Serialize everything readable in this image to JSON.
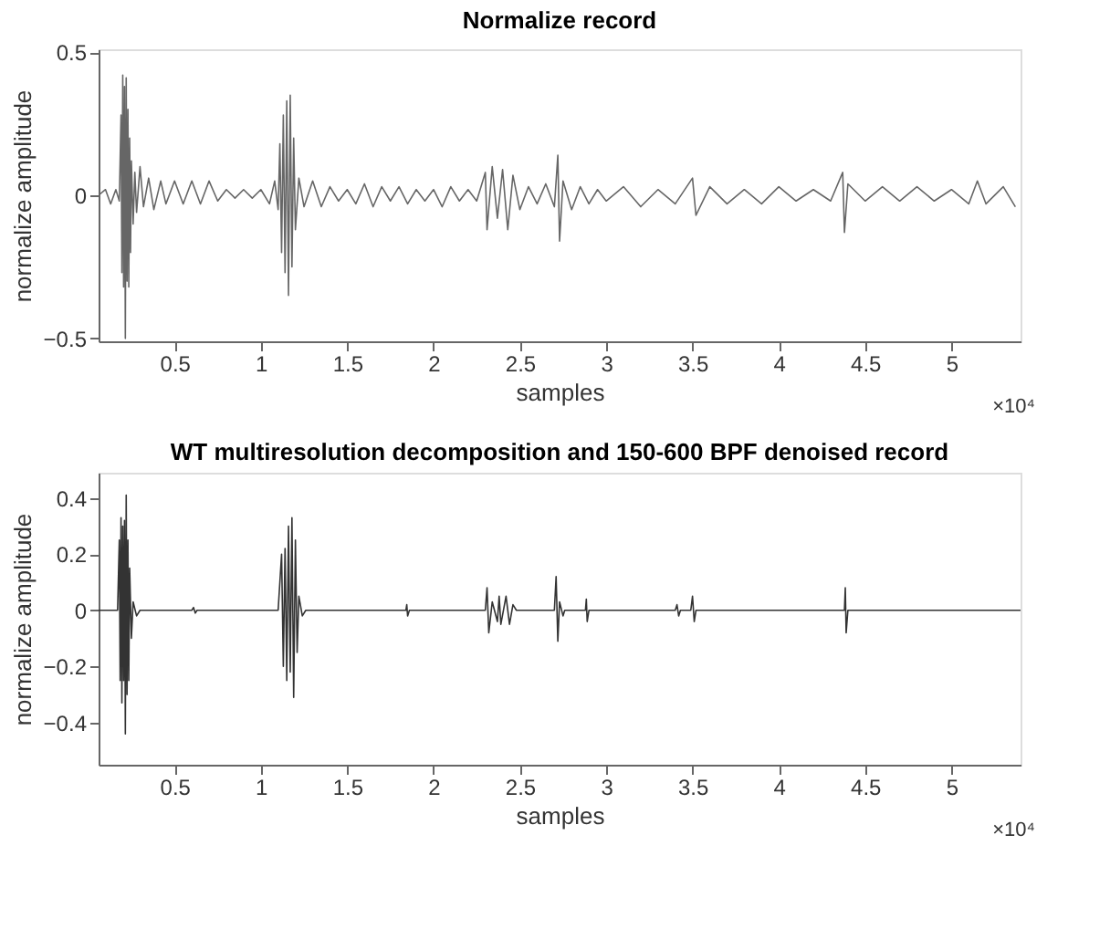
{
  "chart_data": [
    {
      "type": "line",
      "title": "Normalize record",
      "xlabel": "samples",
      "ylabel": "normalize amplitude",
      "xlim": [
        0.06,
        5.4
      ],
      "xticks": [
        0.5,
        1,
        1.5,
        2,
        2.5,
        3,
        3.5,
        4,
        4.5,
        5
      ],
      "ylim": [
        -0.51,
        0.51
      ],
      "yticks": [
        -0.5,
        0,
        0.5
      ],
      "grid": false,
      "annotations": [
        "×10⁴"
      ],
      "series": [
        {
          "color": "#666666",
          "x": [
            0.06,
            0.1,
            0.13,
            0.16,
            0.18,
            0.19,
            0.195,
            0.2,
            0.205,
            0.21,
            0.215,
            0.22,
            0.225,
            0.23,
            0.235,
            0.24,
            0.245,
            0.25,
            0.26,
            0.27,
            0.28,
            0.3,
            0.32,
            0.35,
            0.38,
            0.42,
            0.45,
            0.5,
            0.55,
            0.6,
            0.65,
            0.7,
            0.75,
            0.8,
            0.85,
            0.9,
            0.95,
            1.0,
            1.05,
            1.08,
            1.1,
            1.11,
            1.12,
            1.13,
            1.14,
            1.15,
            1.16,
            1.17,
            1.18,
            1.19,
            1.2,
            1.22,
            1.25,
            1.3,
            1.35,
            1.4,
            1.45,
            1.5,
            1.55,
            1.6,
            1.65,
            1.7,
            1.75,
            1.8,
            1.85,
            1.9,
            1.95,
            2.0,
            2.05,
            2.1,
            2.15,
            2.2,
            2.25,
            2.3,
            2.31,
            2.34,
            2.37,
            2.4,
            2.43,
            2.46,
            2.5,
            2.55,
            2.6,
            2.65,
            2.7,
            2.72,
            2.73,
            2.75,
            2.8,
            2.85,
            2.9,
            2.95,
            3.0,
            3.1,
            3.2,
            3.3,
            3.4,
            3.5,
            3.52,
            3.6,
            3.7,
            3.8,
            3.9,
            4.0,
            4.1,
            4.2,
            4.3,
            4.37,
            4.38,
            4.4,
            4.5,
            4.6,
            4.7,
            4.8,
            4.9,
            5.0,
            5.1,
            5.15,
            5.2,
            5.3,
            5.37
          ],
          "values": [
            0,
            0.02,
            -0.03,
            0.02,
            -0.02,
            0.28,
            -0.27,
            0.42,
            -0.32,
            0.38,
            -0.5,
            0.41,
            -0.3,
            0.3,
            -0.32,
            0.2,
            -0.2,
            0.12,
            -0.1,
            0.08,
            -0.06,
            0.1,
            -0.04,
            0.06,
            -0.05,
            0.05,
            -0.03,
            0.05,
            -0.03,
            0.05,
            -0.03,
            0.05,
            -0.02,
            0.02,
            -0.01,
            0.02,
            -0.01,
            0.02,
            -0.03,
            0.05,
            -0.05,
            0.18,
            -0.2,
            0.28,
            -0.27,
            0.33,
            -0.35,
            0.35,
            -0.25,
            0.2,
            -0.12,
            0.06,
            -0.04,
            0.05,
            -0.04,
            0.03,
            -0.02,
            0.02,
            -0.03,
            0.04,
            -0.04,
            0.03,
            -0.02,
            0.03,
            -0.03,
            0.02,
            -0.02,
            0.02,
            -0.04,
            0.03,
            -0.02,
            0.02,
            -0.02,
            0.08,
            -0.12,
            0.1,
            -0.08,
            0.09,
            -0.12,
            0.07,
            -0.05,
            0.03,
            -0.03,
            0.04,
            -0.04,
            0.14,
            -0.16,
            0.05,
            -0.05,
            0.03,
            -0.03,
            0.02,
            -0.02,
            0.03,
            -0.04,
            0.02,
            -0.03,
            0.06,
            -0.07,
            0.03,
            -0.03,
            0.02,
            -0.03,
            0.03,
            -0.02,
            0.02,
            -0.02,
            0.08,
            -0.13,
            0.04,
            -0.02,
            0.03,
            -0.02,
            0.03,
            -0.02,
            0.02,
            -0.03,
            0.05,
            -0.03,
            0.03,
            -0.04
          ]
        }
      ]
    },
    {
      "type": "line",
      "title": "WT multiresolution decomposition and 150-600 BPF denoised record",
      "xlabel": "samples",
      "ylabel": "normalize amplitude",
      "xlim": [
        0.06,
        5.4
      ],
      "xticks": [
        0.5,
        1,
        1.5,
        2,
        2.5,
        3,
        3.5,
        4,
        4.5,
        5
      ],
      "ylim": [
        -0.55,
        0.49
      ],
      "yticks": [
        -0.4,
        -0.2,
        0,
        0.2,
        0.4
      ],
      "grid": false,
      "annotations": [
        "×10⁴"
      ],
      "series": [
        {
          "color": "#333333",
          "x": [
            0.06,
            0.17,
            0.18,
            0.185,
            0.19,
            0.195,
            0.2,
            0.205,
            0.21,
            0.215,
            0.22,
            0.225,
            0.23,
            0.235,
            0.24,
            0.25,
            0.26,
            0.28,
            0.3,
            0.6,
            0.61,
            0.62,
            0.63,
            1.1,
            1.12,
            1.13,
            1.14,
            1.15,
            1.16,
            1.17,
            1.18,
            1.19,
            1.2,
            1.21,
            1.22,
            1.24,
            1.26,
            1.84,
            1.845,
            1.85,
            1.86,
            2.3,
            2.31,
            2.32,
            2.34,
            2.37,
            2.38,
            2.39,
            2.42,
            2.44,
            2.46,
            2.48,
            2.7,
            2.71,
            2.72,
            2.73,
            2.75,
            2.76,
            2.88,
            2.885,
            2.89,
            2.9,
            3.4,
            3.41,
            3.42,
            3.43,
            3.49,
            3.5,
            3.51,
            3.52,
            4.38,
            4.385,
            4.39,
            4.4,
            5.4
          ],
          "values": [
            0,
            0,
            0.25,
            -0.25,
            0.33,
            -0.33,
            0.3,
            -0.25,
            0.32,
            -0.44,
            0.41,
            -0.3,
            0.25,
            -0.25,
            0.15,
            -0.1,
            0.03,
            -0.02,
            0,
            0,
            0.01,
            -0.01,
            0,
            0,
            0.2,
            -0.2,
            0.22,
            -0.25,
            0.3,
            -0.22,
            0.33,
            -0.31,
            0.25,
            -0.15,
            0.05,
            -0.02,
            0,
            0,
            0.02,
            -0.02,
            0,
            0,
            0.08,
            -0.08,
            0.03,
            -0.04,
            0.05,
            -0.05,
            0.05,
            -0.05,
            0.02,
            0,
            0,
            0.12,
            -0.11,
            0.03,
            -0.02,
            0,
            0,
            0.04,
            -0.04,
            0,
            0,
            0.02,
            -0.02,
            0,
            0,
            0.05,
            -0.04,
            0,
            0,
            0.08,
            -0.08,
            0,
            0
          ]
        }
      ]
    }
  ]
}
